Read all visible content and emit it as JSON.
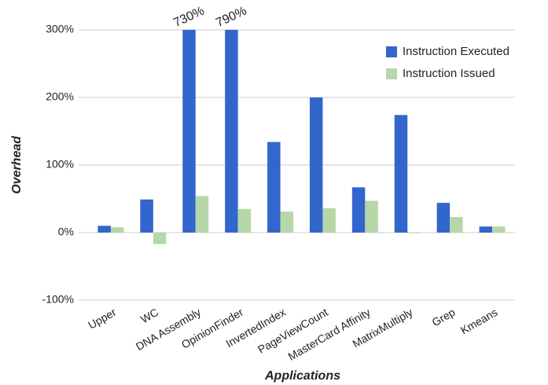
{
  "chart_data": {
    "type": "bar",
    "x_label": "Applications",
    "y_label": "Overhead",
    "categories": [
      "Upper",
      "WC",
      "DNA Assembly",
      "OpinionFinder",
      "InvertedIndex",
      "PageViewCount",
      "MasterCard Affinity",
      "MatrixMultiply",
      "Grep",
      "Kmeans"
    ],
    "series": [
      {
        "name": "Instruction Executed",
        "color": "#3366cc",
        "values": [
          10,
          49,
          730,
          790,
          134,
          200,
          67,
          174,
          44,
          9
        ],
        "value_labels": [
          null,
          null,
          "730%",
          "790%",
          null,
          null,
          null,
          null,
          null,
          null
        ]
      },
      {
        "name": "Instruction Issued",
        "color": "#b6d7a8",
        "values": [
          8,
          -17,
          54,
          35,
          31,
          36,
          47,
          -1,
          23,
          9
        ]
      }
    ],
    "ylim": [
      -100,
      300
    ],
    "yticks": [
      {
        "value": -100,
        "label": "-100%"
      },
      {
        "value": 0,
        "label": "0%"
      },
      {
        "value": 100,
        "label": "100%"
      },
      {
        "value": 200,
        "label": "200%"
      },
      {
        "value": 300,
        "label": "300%"
      }
    ],
    "grid": true,
    "legend": "top-right"
  }
}
